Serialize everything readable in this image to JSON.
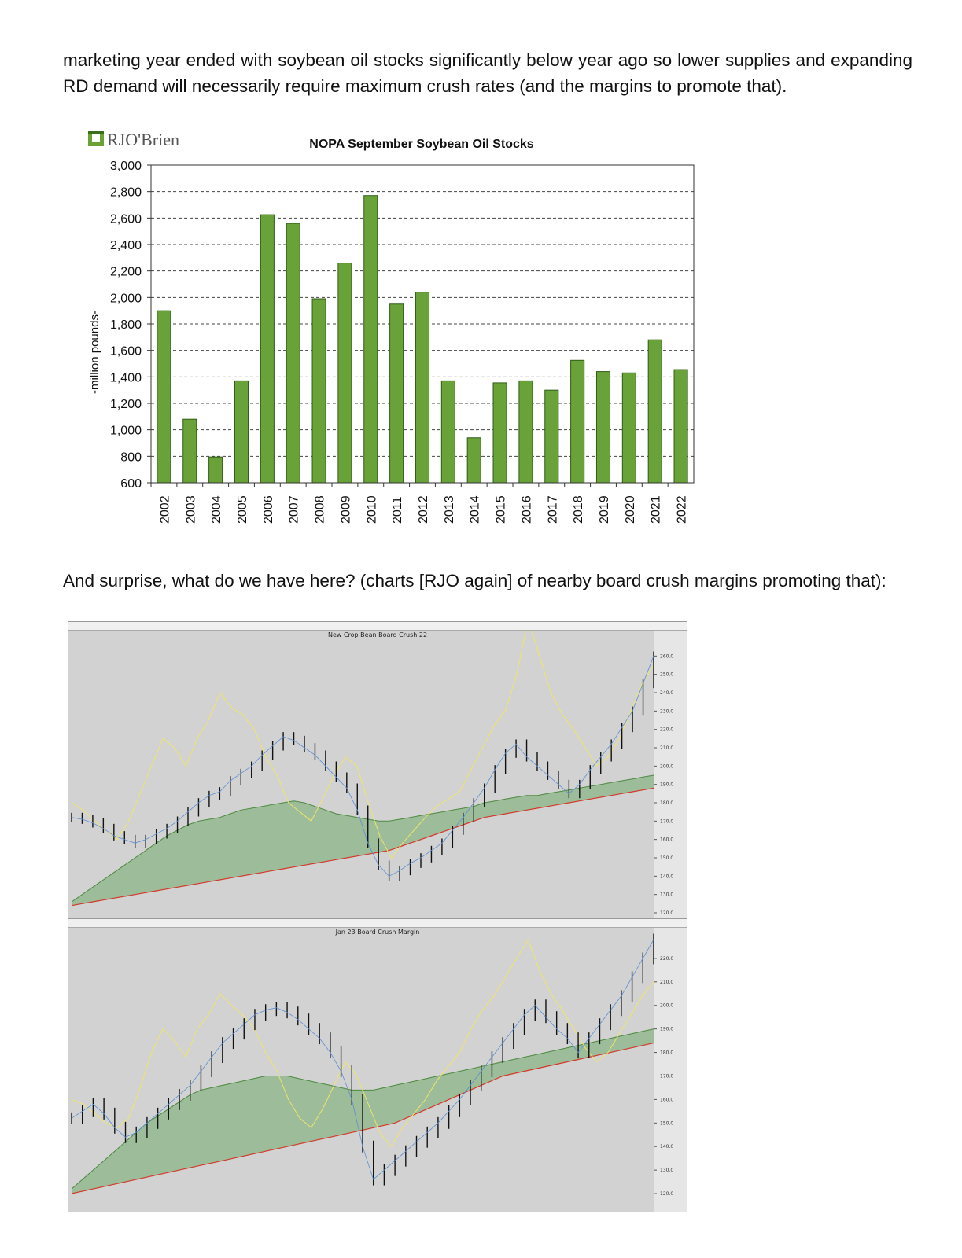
{
  "paragraphs": {
    "p1": "marketing year ended with soybean oil stocks significantly below year ago so lower supplies and expanding RD demand will necessarily require maximum crush rates (and the margins to promote that).",
    "p2": "And surprise, what do we have here? (charts [RJO again] of nearby board crush margins promoting that):"
  },
  "logo": {
    "text": "RJO'Brien",
    "color": "#6aa233"
  },
  "colors": {
    "bar_fill": "#6aa23a",
    "bar_stroke": "#2f5d15",
    "chart_bg": "#d2d2d2"
  },
  "chart_data": [
    {
      "type": "bar",
      "title": "NOPA September Soybean Oil Stocks",
      "xlabel": "",
      "ylabel": "-million pounds-",
      "categories": [
        "2002",
        "2003",
        "2004",
        "2005",
        "2006",
        "2007",
        "2008",
        "2009",
        "2010",
        "2011",
        "2012",
        "2013",
        "2014",
        "2015",
        "2016",
        "2017",
        "2018",
        "2019",
        "2020",
        "2021",
        "2022"
      ],
      "values": [
        1900,
        1080,
        795,
        1370,
        2625,
        2560,
        1990,
        2260,
        2770,
        1950,
        2040,
        1370,
        940,
        1355,
        1370,
        1300,
        1525,
        1440,
        1430,
        1680,
        1455
      ],
      "ylim": [
        600,
        3000
      ],
      "yticks": [
        600,
        800,
        1000,
        1200,
        1400,
        1600,
        1800,
        2000,
        2200,
        2400,
        2600,
        2800,
        3000
      ],
      "ytick_labels": [
        "600",
        "800",
        "1,000",
        "1,200",
        "1,400",
        "1,600",
        "1,800",
        "2,000",
        "2,200",
        "2,400",
        "2,600",
        "2,800",
        "3,000"
      ],
      "grid": "dashed-horizontal",
      "legend": "none"
    },
    {
      "type": "line",
      "title": "New Crop Bean Board Crush 22",
      "ylim": [
        120,
        270
      ],
      "yticks": [
        120,
        130,
        140,
        150,
        160,
        170,
        180,
        190,
        200,
        210,
        220,
        230,
        240,
        250,
        260
      ],
      "ytick_labels": [
        "120.0",
        "130.0",
        "140.0",
        "150.0",
        "160.0",
        "170.0",
        "180.0",
        "190.0",
        "200.0",
        "210.0",
        "220.0",
        "230.0",
        "240.0",
        "250.0",
        "260.0"
      ],
      "series": [
        {
          "values": [
            172,
            171,
            169,
            166,
            162,
            160,
            158,
            160,
            163,
            166,
            170,
            175,
            180,
            184,
            186,
            192,
            196,
            200,
            206,
            211,
            216,
            214,
            210,
            206,
            200,
            194,
            188,
            176,
            158,
            146,
            140,
            143,
            147,
            150,
            154,
            158,
            165,
            172,
            180,
            188,
            198,
            207,
            212,
            205,
            200,
            195,
            190,
            185,
            190,
            198,
            205,
            212,
            221,
            230,
            245,
            260
          ]
        },
        {
          "values": [
            126,
            130,
            134,
            138,
            142,
            146,
            150,
            154,
            158,
            162,
            165,
            168,
            170,
            171,
            172,
            174,
            176,
            177,
            178,
            179,
            180,
            181,
            180,
            178,
            176,
            174,
            173,
            172,
            171,
            170,
            170,
            171,
            172,
            173,
            174,
            175,
            176,
            177,
            178,
            180,
            181,
            182,
            183,
            184,
            184,
            185,
            186,
            187,
            188,
            189,
            190,
            191,
            192,
            193,
            194,
            195
          ]
        },
        {
          "values": [
            124,
            125,
            126,
            127,
            128,
            129,
            130,
            131,
            132,
            133,
            134,
            135,
            136,
            137,
            138,
            139,
            140,
            141,
            142,
            143,
            144,
            145,
            146,
            147,
            148,
            149,
            150,
            151,
            152,
            153,
            154,
            156,
            158,
            160,
            162,
            164,
            166,
            168,
            170,
            172,
            173,
            174,
            175,
            176,
            177,
            178,
            179,
            180,
            181,
            182,
            183,
            184,
            185,
            186,
            187,
            188
          ]
        },
        {
          "values": [
            180,
            176,
            170,
            165,
            160,
            170,
            185,
            200,
            215,
            210,
            200,
            215,
            225,
            240,
            232,
            228,
            220,
            205,
            195,
            180,
            175,
            170,
            182,
            195,
            205,
            200,
            180,
            162,
            150,
            158,
            165,
            172,
            178,
            182,
            186,
            198,
            210,
            222,
            230,
            250,
            280,
            260,
            240,
            228,
            220,
            210,
            200,
            205,
            215,
            230,
            245,
            255
          ]
        }
      ],
      "legend": "top-left"
    },
    {
      "type": "line",
      "title": "Jan 23 Board Crush Margin",
      "ylim": [
        115,
        230
      ],
      "yticks": [
        120,
        130,
        140,
        150,
        160,
        170,
        180,
        190,
        200,
        210,
        220
      ],
      "ytick_labels": [
        "120.0",
        "130.0",
        "140.0",
        "150.0",
        "160.0",
        "170.0",
        "180.0",
        "190.0",
        "200.0",
        "210.0",
        "220.0"
      ],
      "series": [
        {
          "values": [
            152,
            155,
            158,
            154,
            148,
            144,
            146,
            150,
            154,
            158,
            162,
            166,
            172,
            178,
            184,
            188,
            192,
            196,
            198,
            199,
            197,
            194,
            190,
            186,
            180,
            172,
            160,
            140,
            126,
            130,
            134,
            138,
            142,
            146,
            150,
            155,
            160,
            166,
            172,
            178,
            184,
            190,
            196,
            200,
            195,
            190,
            186,
            180,
            186,
            192,
            198,
            204,
            212,
            220,
            228
          ]
        },
        {
          "values": [
            122,
            126,
            130,
            134,
            138,
            142,
            146,
            150,
            153,
            156,
            159,
            162,
            164,
            165,
            166,
            167,
            168,
            169,
            170,
            170,
            170,
            169,
            168,
            167,
            166,
            165,
            164,
            164,
            164,
            165,
            166,
            167,
            168,
            169,
            170,
            171,
            172,
            173,
            174,
            175,
            176,
            177,
            178,
            179,
            180,
            181,
            182,
            183,
            184,
            185,
            186,
            187,
            188,
            189,
            190
          ]
        },
        {
          "values": [
            120,
            121,
            122,
            123,
            124,
            125,
            126,
            127,
            128,
            129,
            130,
            131,
            132,
            133,
            134,
            135,
            136,
            137,
            138,
            139,
            140,
            141,
            142,
            143,
            144,
            145,
            146,
            147,
            148,
            149,
            150,
            152,
            154,
            156,
            158,
            160,
            162,
            164,
            166,
            168,
            170,
            171,
            172,
            173,
            174,
            175,
            176,
            177,
            178,
            179,
            180,
            181,
            182,
            183,
            184
          ]
        },
        {
          "values": [
            160,
            158,
            154,
            150,
            148,
            152,
            165,
            180,
            190,
            185,
            178,
            190,
            196,
            205,
            200,
            196,
            190,
            180,
            172,
            160,
            152,
            148,
            156,
            166,
            176,
            170,
            158,
            146,
            140,
            148,
            154,
            160,
            168,
            174,
            180,
            190,
            198,
            204,
            212,
            220,
            228,
            215,
            205,
            198,
            190,
            182,
            176,
            180,
            188,
            196,
            204,
            210
          ]
        }
      ],
      "legend": "top-left"
    }
  ]
}
